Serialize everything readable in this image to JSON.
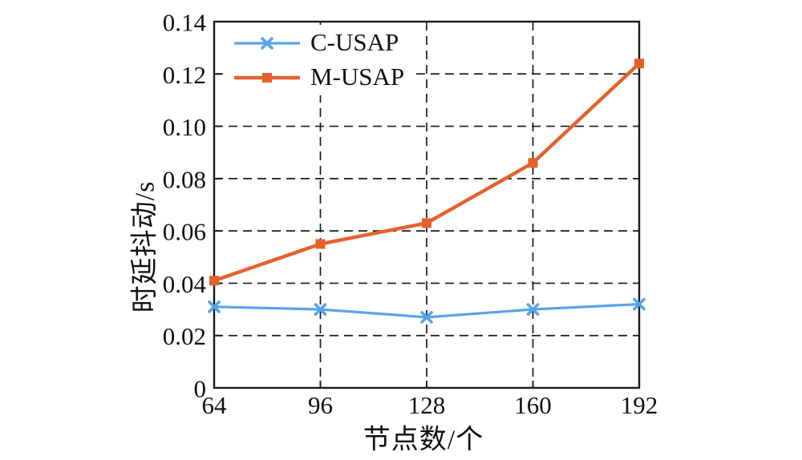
{
  "figure": {
    "background": "#ffffff",
    "text_color": "#111111",
    "grid_color": "#1a1a1a"
  },
  "chart_data": {
    "type": "line",
    "x": [
      64,
      96,
      128,
      160,
      192
    ],
    "series": [
      {
        "name": "C-USAP",
        "color": "#58a3e8",
        "marker": "x",
        "values": [
          0.031,
          0.03,
          0.027,
          0.03,
          0.032
        ]
      },
      {
        "name": "M-USAP",
        "color": "#e6602c",
        "marker": "square",
        "values": [
          0.041,
          0.055,
          0.063,
          0.086,
          0.124
        ]
      }
    ],
    "xlabel": "节点数/个",
    "ylabel": "时延抖动/s",
    "xticks": [
      64,
      96,
      128,
      160,
      192
    ],
    "yticks": [
      0,
      0.02,
      0.04,
      0.06,
      0.08,
      0.1,
      0.12,
      0.14
    ],
    "xlim": [
      64,
      192
    ],
    "ylim": [
      0,
      0.14
    ],
    "grid": "dashed",
    "legend_position": "top-left"
  }
}
